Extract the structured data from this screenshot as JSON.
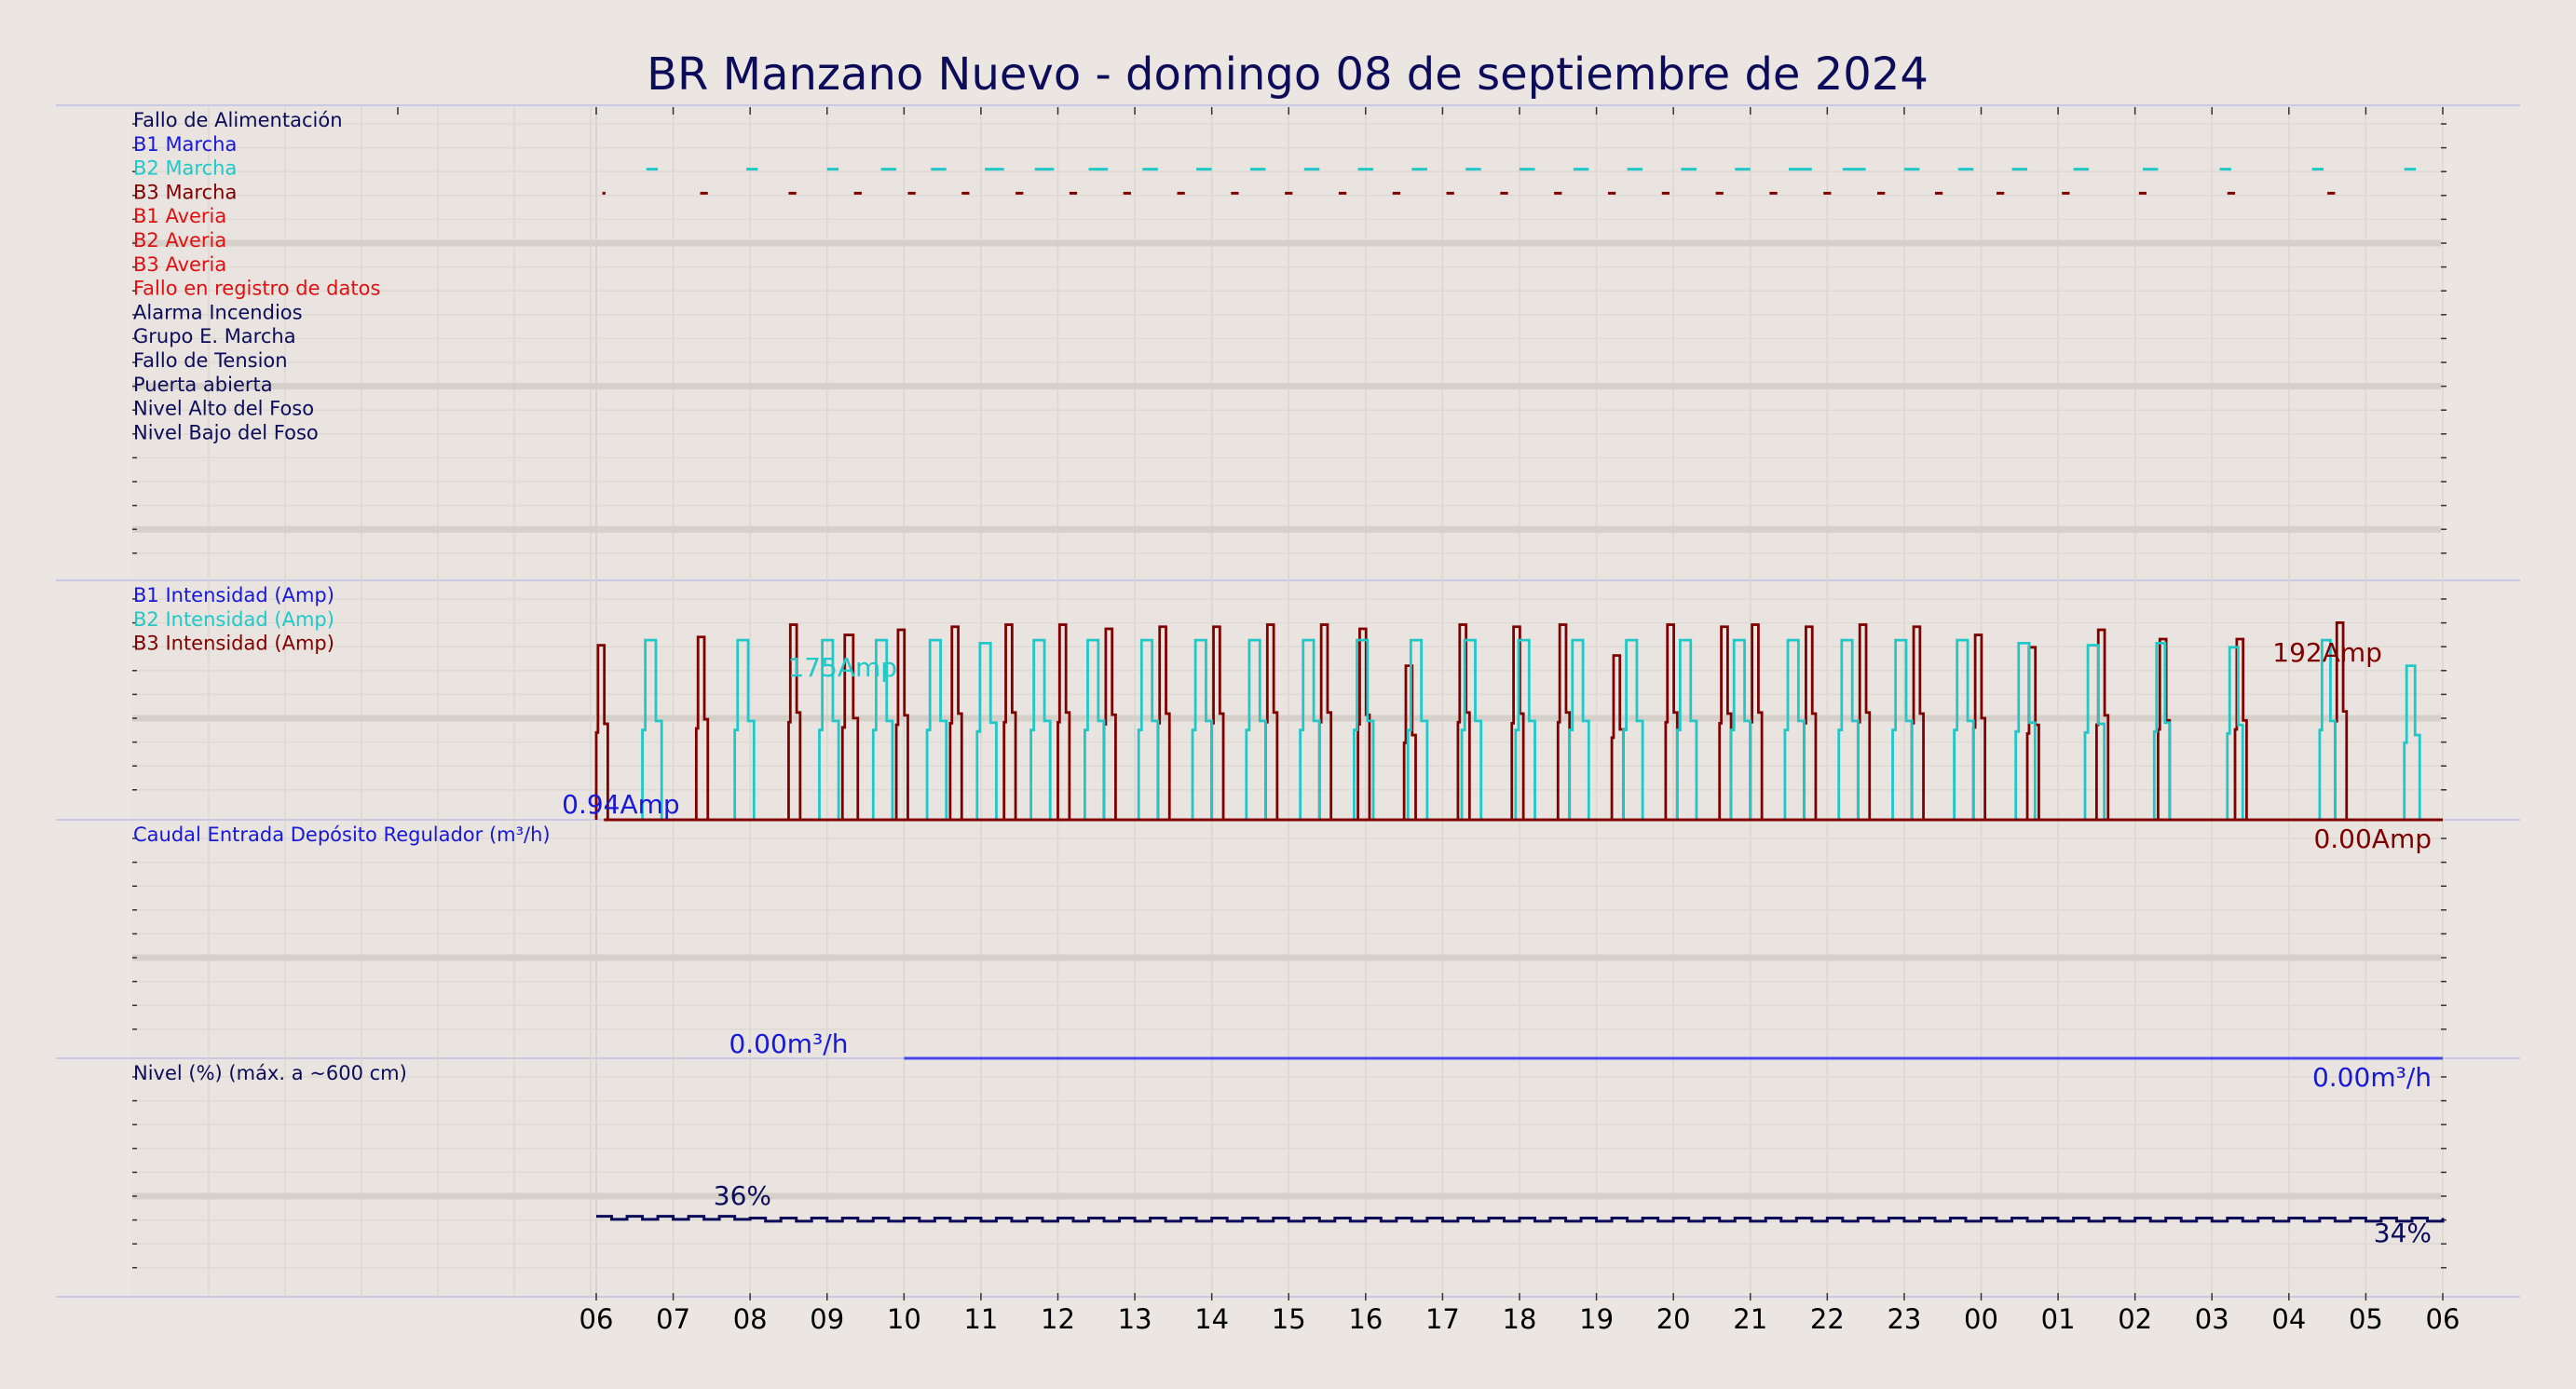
{
  "chart_data": {
    "type": "line",
    "title": "BR Manzano Nuevo   -   domingo 08 de septiembre de 2024",
    "x_tick_labels": [
      "06",
      "07",
      "08",
      "09",
      "10",
      "11",
      "12",
      "13",
      "14",
      "15",
      "16",
      "17",
      "18",
      "19",
      "20",
      "21",
      "22",
      "23",
      "00",
      "01",
      "02",
      "03",
      "04",
      "05",
      "06"
    ],
    "x_unit": "hour",
    "x_range_hours": [
      0,
      24
    ],
    "grid": true,
    "colors": {
      "navy": "#0c0c5a",
      "blue": "#1818d8",
      "cyan": "#20c8c8",
      "maroon": "#800000",
      "red": "#e01010",
      "flow_line": "#4848f0"
    },
    "panels": [
      {
        "name": "status",
        "labels": [
          {
            "text": "Fallo de Alimentación",
            "color": "#0c0c5a"
          },
          {
            "text": "B1 Marcha",
            "color": "#1818d8"
          },
          {
            "text": "B2 Marcha",
            "color": "#20c8c8"
          },
          {
            "text": "B3 Marcha",
            "color": "#800000"
          },
          {
            "text": "B1 Averia",
            "color": "#e01010"
          },
          {
            "text": "B2 Averia",
            "color": "#e01010"
          },
          {
            "text": "B3 Averia",
            "color": "#e01010"
          },
          {
            "text": "Fallo en registro de datos",
            "color": "#e01010"
          },
          {
            "text": "Alarma Incendios",
            "color": "#0c0c5a"
          },
          {
            "text": "Grupo E. Marcha",
            "color": "#0c0c5a"
          },
          {
            "text": "Fallo de Tension",
            "color": "#0c0c5a"
          },
          {
            "text": "Puerta abierta",
            "color": "#0c0c5a"
          },
          {
            "text": "Nivel Alto del Foso",
            "color": "#0c0c5a"
          },
          {
            "text": "Nivel Bajo del Foso",
            "color": "#0c0c5a"
          }
        ],
        "series": [
          {
            "label_index": 2,
            "color": "#20c8c8",
            "on_intervals": [
              [
                0.65,
                0.8
              ],
              [
                1.95,
                2.1
              ],
              [
                3.0,
                3.15
              ],
              [
                3.7,
                3.9
              ],
              [
                4.35,
                4.55
              ],
              [
                5.05,
                5.3
              ],
              [
                5.7,
                5.95
              ],
              [
                6.4,
                6.65
              ],
              [
                7.1,
                7.3
              ],
              [
                7.8,
                8.0
              ],
              [
                8.5,
                8.7
              ],
              [
                9.2,
                9.4
              ],
              [
                9.9,
                10.1
              ],
              [
                10.6,
                10.8
              ],
              [
                11.3,
                11.5
              ],
              [
                12.0,
                12.2
              ],
              [
                12.7,
                12.9
              ],
              [
                13.4,
                13.6
              ],
              [
                14.1,
                14.3
              ],
              [
                14.8,
                15.0
              ],
              [
                15.5,
                15.8
              ],
              [
                16.2,
                16.5
              ],
              [
                17.0,
                17.2
              ],
              [
                17.7,
                17.9
              ],
              [
                18.4,
                18.6
              ],
              [
                19.2,
                19.4
              ],
              [
                20.1,
                20.3
              ],
              [
                21.1,
                21.25
              ],
              [
                22.3,
                22.45
              ],
              [
                23.5,
                23.65
              ]
            ]
          },
          {
            "label_index": 3,
            "color": "#800000",
            "on_intervals": [
              [
                0.08,
                0.12
              ],
              [
                1.35,
                1.45
              ],
              [
                2.5,
                2.6
              ],
              [
                3.35,
                3.45
              ],
              [
                4.05,
                4.15
              ],
              [
                4.75,
                4.85
              ],
              [
                5.45,
                5.55
              ],
              [
                6.15,
                6.25
              ],
              [
                6.85,
                6.95
              ],
              [
                7.55,
                7.65
              ],
              [
                8.25,
                8.35
              ],
              [
                8.95,
                9.05
              ],
              [
                9.65,
                9.75
              ],
              [
                10.35,
                10.45
              ],
              [
                11.05,
                11.15
              ],
              [
                11.75,
                11.85
              ],
              [
                12.45,
                12.55
              ],
              [
                13.15,
                13.25
              ],
              [
                13.85,
                13.95
              ],
              [
                14.55,
                14.65
              ],
              [
                15.25,
                15.35
              ],
              [
                15.95,
                16.05
              ],
              [
                16.65,
                16.75
              ],
              [
                17.4,
                17.5
              ],
              [
                18.2,
                18.3
              ],
              [
                19.05,
                19.15
              ],
              [
                20.05,
                20.15
              ],
              [
                21.2,
                21.3
              ],
              [
                22.5,
                22.6
              ]
            ]
          }
        ]
      },
      {
        "name": "intensity",
        "labels": [
          {
            "text": "B1 Intensidad (Amp)",
            "color": "#1818d8"
          },
          {
            "text": "B2 Intensidad (Amp)",
            "color": "#20c8c8"
          },
          {
            "text": "B3 Intensidad (Amp)",
            "color": "#800000"
          }
        ],
        "y_unit": "Amp",
        "ylim": [
          0,
          215
        ],
        "series": [
          {
            "label_index": 2,
            "color": "#800000",
            "peak": 192,
            "spikes": [
              [
                0.0,
                0.15,
                170
              ],
              [
                1.3,
                1.45,
                178
              ],
              [
                2.5,
                2.65,
                190
              ],
              [
                3.2,
                3.4,
                180
              ],
              [
                3.9,
                4.05,
                185
              ],
              [
                4.6,
                4.75,
                188
              ],
              [
                5.3,
                5.45,
                190
              ],
              [
                6.0,
                6.15,
                190
              ],
              [
                6.6,
                6.75,
                186
              ],
              [
                7.3,
                7.45,
                188
              ],
              [
                8.0,
                8.15,
                188
              ],
              [
                8.7,
                8.85,
                190
              ],
              [
                9.4,
                9.55,
                190
              ],
              [
                9.9,
                10.05,
                186
              ],
              [
                10.5,
                10.65,
                150
              ],
              [
                11.2,
                11.35,
                190
              ],
              [
                11.9,
                12.05,
                188
              ],
              [
                12.5,
                12.65,
                190
              ],
              [
                13.2,
                13.35,
                160
              ],
              [
                13.9,
                14.05,
                190
              ],
              [
                14.6,
                14.75,
                188
              ],
              [
                15.0,
                15.15,
                190
              ],
              [
                15.7,
                15.85,
                188
              ],
              [
                16.4,
                16.55,
                190
              ],
              [
                17.1,
                17.25,
                188
              ],
              [
                17.9,
                18.05,
                180
              ],
              [
                18.6,
                18.75,
                168
              ],
              [
                19.5,
                19.65,
                185
              ],
              [
                20.3,
                20.45,
                176
              ],
              [
                21.3,
                21.45,
                176
              ],
              [
                22.6,
                22.75,
                192
              ]
            ]
          },
          {
            "label_index": 1,
            "color": "#20c8c8",
            "peak": 175,
            "spikes": [
              [
                0.6,
                0.85,
                175
              ],
              [
                1.8,
                2.05,
                175
              ],
              [
                2.9,
                3.15,
                175
              ],
              [
                3.6,
                3.85,
                175
              ],
              [
                4.3,
                4.55,
                175
              ],
              [
                4.95,
                5.2,
                172
              ],
              [
                5.65,
                5.9,
                175
              ],
              [
                6.35,
                6.6,
                175
              ],
              [
                7.05,
                7.3,
                175
              ],
              [
                7.75,
                8.0,
                175
              ],
              [
                8.45,
                8.7,
                175
              ],
              [
                9.15,
                9.4,
                175
              ],
              [
                9.85,
                10.1,
                175
              ],
              [
                10.55,
                10.8,
                175
              ],
              [
                11.25,
                11.5,
                175
              ],
              [
                11.95,
                12.2,
                175
              ],
              [
                12.65,
                12.9,
                175
              ],
              [
                13.35,
                13.6,
                175
              ],
              [
                14.05,
                14.3,
                175
              ],
              [
                14.75,
                15.0,
                175
              ],
              [
                15.45,
                15.7,
                175
              ],
              [
                16.15,
                16.4,
                175
              ],
              [
                16.85,
                17.1,
                175
              ],
              [
                17.65,
                17.9,
                175
              ],
              [
                18.45,
                18.7,
                172
              ],
              [
                19.35,
                19.6,
                170
              ],
              [
                20.25,
                20.45,
                172
              ],
              [
                21.2,
                21.4,
                168
              ],
              [
                22.4,
                22.6,
                175
              ],
              [
                23.5,
                23.7,
                150
              ]
            ]
          }
        ],
        "annotations": [
          {
            "text": "175Amp",
            "color": "#20c8c8"
          },
          {
            "text": "0.94Amp",
            "color": "#1818d8"
          },
          {
            "text": "192Amp",
            "color": "#800000"
          },
          {
            "text": "0.00Amp",
            "color": "#800000"
          }
        ]
      },
      {
        "name": "flow",
        "labels": [
          {
            "text": "Caudal Entrada Depósito Regulador (m³/h)",
            "color": "#1818d8"
          }
        ],
        "y_unit": "m³/h",
        "ylim": [
          0,
          10
        ],
        "series": [
          {
            "color": "#4848f0",
            "segments": [
              [
                4.0,
                24.0
              ]
            ],
            "value": 0.0
          }
        ],
        "annotations": [
          {
            "text": "0.00m³/h",
            "color": "#1818d8"
          },
          {
            "text": "0.00m³/h",
            "color": "#1818d8"
          }
        ]
      },
      {
        "name": "level",
        "labels": [
          {
            "text": "Nivel (%) (máx. a ~600 cm)",
            "color": "#0c0c5a"
          }
        ],
        "y_unit": "%",
        "ylim": [
          0,
          100
        ],
        "series": [
          {
            "color": "#0c0c5a",
            "x_start_hours": 0,
            "x_end_hours": 24,
            "base_value": 35,
            "min": 33,
            "max": 37
          }
        ],
        "annotations": [
          {
            "text": "36%",
            "color": "#0c0c5a"
          },
          {
            "text": "34%",
            "color": "#0c0c5a"
          }
        ]
      }
    ]
  }
}
